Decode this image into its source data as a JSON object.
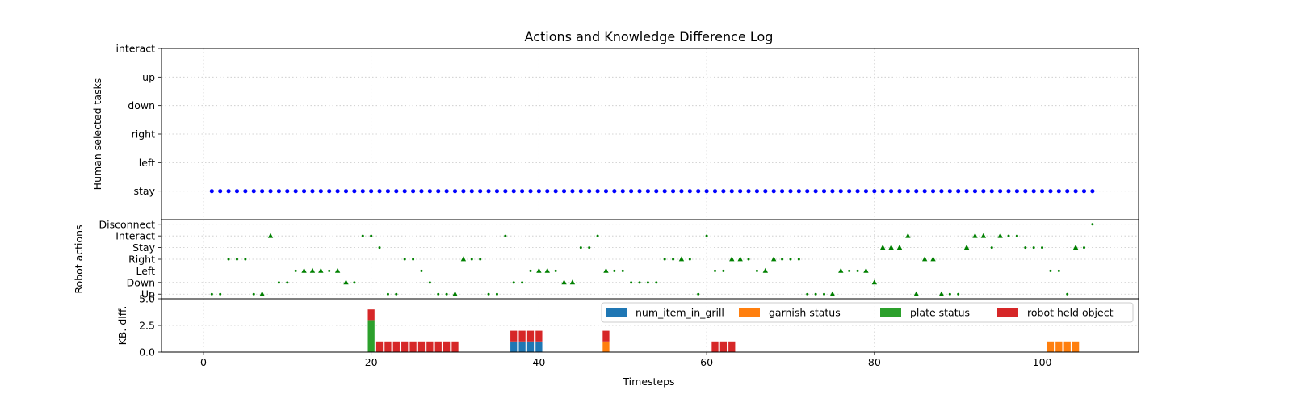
{
  "chart_data": {
    "type": "composite",
    "title": "Actions and Knowledge Difference Log",
    "xlabel": "Timesteps",
    "xlim": [
      -5,
      111.5
    ],
    "xticks": [
      0,
      20,
      40,
      60,
      80,
      100
    ],
    "grid": true,
    "panels": [
      {
        "type": "scatter",
        "ylabel": "Human selected tasks",
        "categories": [
          "stay",
          "left",
          "right",
          "down",
          "up",
          "interact"
        ],
        "ylim": [
          -1,
          5
        ],
        "marker": "circle",
        "color": "#0000ff",
        "x_range": [
          1,
          106
        ],
        "value": "stay"
      },
      {
        "type": "scatter",
        "ylabel": "Robot actions",
        "categories": [
          "Up",
          "Down",
          "Left",
          "Right",
          "Stay",
          "Interact",
          "Disconnect"
        ],
        "ylim": [
          -0.4,
          6.4
        ],
        "color": "#008000",
        "points": [
          {
            "x": 1,
            "y": "Up",
            "m": "."
          },
          {
            "x": 2,
            "y": "Up",
            "m": "."
          },
          {
            "x": 3,
            "y": "Right",
            "m": "."
          },
          {
            "x": 4,
            "y": "Right",
            "m": "."
          },
          {
            "x": 5,
            "y": "Right",
            "m": "."
          },
          {
            "x": 6,
            "y": "Up",
            "m": "."
          },
          {
            "x": 7,
            "y": "Up",
            "m": "^"
          },
          {
            "x": 8,
            "y": "Interact",
            "m": "^"
          },
          {
            "x": 9,
            "y": "Down",
            "m": "."
          },
          {
            "x": 10,
            "y": "Down",
            "m": "."
          },
          {
            "x": 11,
            "y": "Left",
            "m": "."
          },
          {
            "x": 12,
            "y": "Left",
            "m": "^"
          },
          {
            "x": 13,
            "y": "Left",
            "m": "^"
          },
          {
            "x": 14,
            "y": "Left",
            "m": "^"
          },
          {
            "x": 15,
            "y": "Left",
            "m": "."
          },
          {
            "x": 16,
            "y": "Left",
            "m": "^"
          },
          {
            "x": 17,
            "y": "Down",
            "m": "^"
          },
          {
            "x": 18,
            "y": "Down",
            "m": "."
          },
          {
            "x": 19,
            "y": "Interact",
            "m": "."
          },
          {
            "x": 20,
            "y": "Interact",
            "m": "."
          },
          {
            "x": 21,
            "y": "Stay",
            "m": "."
          },
          {
            "x": 22,
            "y": "Up",
            "m": "."
          },
          {
            "x": 23,
            "y": "Up",
            "m": "."
          },
          {
            "x": 24,
            "y": "Right",
            "m": "."
          },
          {
            "x": 25,
            "y": "Right",
            "m": "."
          },
          {
            "x": 26,
            "y": "Left",
            "m": "."
          },
          {
            "x": 27,
            "y": "Down",
            "m": "."
          },
          {
            "x": 28,
            "y": "Up",
            "m": "."
          },
          {
            "x": 29,
            "y": "Up",
            "m": "."
          },
          {
            "x": 30,
            "y": "Up",
            "m": "^"
          },
          {
            "x": 31,
            "y": "Right",
            "m": "^"
          },
          {
            "x": 32,
            "y": "Right",
            "m": "."
          },
          {
            "x": 33,
            "y": "Right",
            "m": "."
          },
          {
            "x": 34,
            "y": "Up",
            "m": "."
          },
          {
            "x": 35,
            "y": "Up",
            "m": "."
          },
          {
            "x": 36,
            "y": "Interact",
            "m": "."
          },
          {
            "x": 37,
            "y": "Down",
            "m": "."
          },
          {
            "x": 38,
            "y": "Down",
            "m": "."
          },
          {
            "x": 39,
            "y": "Left",
            "m": "."
          },
          {
            "x": 40,
            "y": "Left",
            "m": "^"
          },
          {
            "x": 41,
            "y": "Left",
            "m": "^"
          },
          {
            "x": 42,
            "y": "Left",
            "m": "."
          },
          {
            "x": 43,
            "y": "Down",
            "m": "^"
          },
          {
            "x": 44,
            "y": "Down",
            "m": "^"
          },
          {
            "x": 45,
            "y": "Stay",
            "m": "."
          },
          {
            "x": 46,
            "y": "Stay",
            "m": "."
          },
          {
            "x": 47,
            "y": "Interact",
            "m": "."
          },
          {
            "x": 48,
            "y": "Left",
            "m": "^"
          },
          {
            "x": 49,
            "y": "Left",
            "m": "."
          },
          {
            "x": 50,
            "y": "Left",
            "m": "."
          },
          {
            "x": 51,
            "y": "Down",
            "m": "."
          },
          {
            "x": 52,
            "y": "Down",
            "m": "."
          },
          {
            "x": 53,
            "y": "Down",
            "m": "."
          },
          {
            "x": 54,
            "y": "Down",
            "m": "."
          },
          {
            "x": 55,
            "y": "Right",
            "m": "."
          },
          {
            "x": 56,
            "y": "Right",
            "m": "."
          },
          {
            "x": 57,
            "y": "Right",
            "m": "^"
          },
          {
            "x": 58,
            "y": "Right",
            "m": "."
          },
          {
            "x": 59,
            "y": "Up",
            "m": "."
          },
          {
            "x": 60,
            "y": "Interact",
            "m": "."
          },
          {
            "x": 61,
            "y": "Left",
            "m": "."
          },
          {
            "x": 62,
            "y": "Left",
            "m": "."
          },
          {
            "x": 63,
            "y": "Right",
            "m": "^"
          },
          {
            "x": 64,
            "y": "Right",
            "m": "^"
          },
          {
            "x": 65,
            "y": "Right",
            "m": "."
          },
          {
            "x": 66,
            "y": "Left",
            "m": "."
          },
          {
            "x": 67,
            "y": "Left",
            "m": "^"
          },
          {
            "x": 68,
            "y": "Right",
            "m": "^"
          },
          {
            "x": 69,
            "y": "Right",
            "m": "."
          },
          {
            "x": 70,
            "y": "Right",
            "m": "."
          },
          {
            "x": 71,
            "y": "Right",
            "m": "."
          },
          {
            "x": 72,
            "y": "Up",
            "m": "."
          },
          {
            "x": 73,
            "y": "Up",
            "m": "."
          },
          {
            "x": 74,
            "y": "Up",
            "m": "."
          },
          {
            "x": 75,
            "y": "Up",
            "m": "^"
          },
          {
            "x": 76,
            "y": "Left",
            "m": "^"
          },
          {
            "x": 77,
            "y": "Left",
            "m": "."
          },
          {
            "x": 78,
            "y": "Left",
            "m": "."
          },
          {
            "x": 79,
            "y": "Left",
            "m": "^"
          },
          {
            "x": 80,
            "y": "Down",
            "m": "^"
          },
          {
            "x": 81,
            "y": "Stay",
            "m": "^"
          },
          {
            "x": 82,
            "y": "Stay",
            "m": "^"
          },
          {
            "x": 83,
            "y": "Stay",
            "m": "^"
          },
          {
            "x": 84,
            "y": "Interact",
            "m": "^"
          },
          {
            "x": 85,
            "y": "Up",
            "m": "^"
          },
          {
            "x": 86,
            "y": "Right",
            "m": "^"
          },
          {
            "x": 87,
            "y": "Right",
            "m": "^"
          },
          {
            "x": 88,
            "y": "Up",
            "m": "^"
          },
          {
            "x": 89,
            "y": "Up",
            "m": "."
          },
          {
            "x": 90,
            "y": "Up",
            "m": "."
          },
          {
            "x": 91,
            "y": "Stay",
            "m": "^"
          },
          {
            "x": 92,
            "y": "Interact",
            "m": "^"
          },
          {
            "x": 93,
            "y": "Interact",
            "m": "^"
          },
          {
            "x": 94,
            "y": "Stay",
            "m": "."
          },
          {
            "x": 95,
            "y": "Interact",
            "m": "^"
          },
          {
            "x": 96,
            "y": "Interact",
            "m": "."
          },
          {
            "x": 97,
            "y": "Interact",
            "m": "."
          },
          {
            "x": 98,
            "y": "Stay",
            "m": "."
          },
          {
            "x": 99,
            "y": "Stay",
            "m": "."
          },
          {
            "x": 100,
            "y": "Stay",
            "m": "."
          },
          {
            "x": 101,
            "y": "Left",
            "m": "."
          },
          {
            "x": 102,
            "y": "Left",
            "m": "."
          },
          {
            "x": 103,
            "y": "Up",
            "m": "."
          },
          {
            "x": 104,
            "y": "Stay",
            "m": "^"
          },
          {
            "x": 105,
            "y": "Stay",
            "m": "."
          },
          {
            "x": 106,
            "y": "Disconnect",
            "m": "."
          }
        ]
      },
      {
        "type": "bar",
        "stacked": true,
        "ylabel": "KB. diff.",
        "ylim": [
          0,
          5
        ],
        "yticks": [
          0.0,
          2.5,
          5.0
        ],
        "legend": {
          "position": "top-right",
          "columns": 4
        },
        "series": [
          {
            "name": "num_item_in_grill",
            "color": "#1f77b4",
            "points": [
              [
                37,
                1
              ],
              [
                38,
                1
              ],
              [
                39,
                1
              ],
              [
                40,
                1
              ]
            ]
          },
          {
            "name": "garnish status",
            "color": "#ff7f0e",
            "points": [
              [
                48,
                1
              ],
              [
                101,
                1
              ],
              [
                102,
                1
              ],
              [
                103,
                1
              ],
              [
                104,
                1
              ]
            ]
          },
          {
            "name": "plate status",
            "color": "#2ca02c",
            "points": [
              [
                20,
                3
              ]
            ]
          },
          {
            "name": "robot held object",
            "color": "#d62728",
            "points": [
              [
                20,
                1
              ],
              [
                21,
                1
              ],
              [
                22,
                1
              ],
              [
                23,
                1
              ],
              [
                24,
                1
              ],
              [
                25,
                1
              ],
              [
                26,
                1
              ],
              [
                27,
                1
              ],
              [
                28,
                1
              ],
              [
                29,
                1
              ],
              [
                30,
                1
              ],
              [
                37,
                1
              ],
              [
                38,
                1
              ],
              [
                39,
                1
              ],
              [
                40,
                1
              ],
              [
                48,
                1
              ],
              [
                61,
                1
              ],
              [
                62,
                1
              ],
              [
                63,
                1
              ]
            ]
          }
        ]
      }
    ]
  }
}
